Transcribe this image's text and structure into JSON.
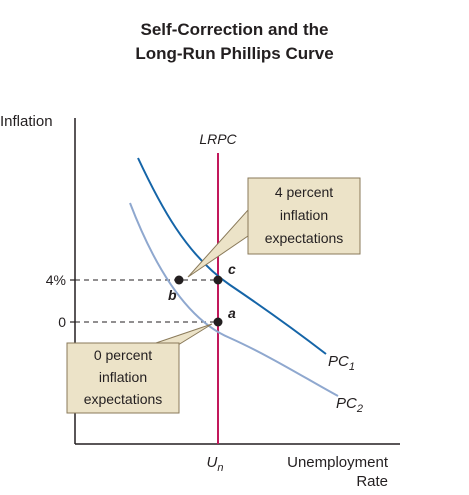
{
  "title_lines": [
    "Self-Correction and the",
    "Long-Run Phillips Curve"
  ],
  "chart_data": {
    "type": "line",
    "ylabel": "Inflation",
    "xlabel_lines": [
      "Unemployment",
      "Rate"
    ],
    "y_ticks": [
      {
        "label": "4%",
        "value": 4
      },
      {
        "label": "0",
        "value": 0
      }
    ],
    "x_ticks": [
      {
        "label": "U",
        "subscript": "n"
      }
    ],
    "vertical_line": {
      "label": "LRPC",
      "color": "#c2185b"
    },
    "series": [
      {
        "name": "PC",
        "subscript": "1",
        "color": "#1565a8"
      },
      {
        "name": "PC",
        "subscript": "2",
        "color": "#8fa8cf"
      }
    ],
    "points": [
      {
        "label": "a",
        "curve": "PC2",
        "inflation": 0
      },
      {
        "label": "b",
        "curve": "PC2",
        "inflation": 4
      },
      {
        "label": "c",
        "curve": "PC1",
        "inflation": 4
      }
    ],
    "annotations": [
      {
        "lines": [
          "4 percent",
          "inflation",
          "expectations"
        ]
      },
      {
        "lines": [
          "0 percent",
          "inflation",
          "expectations"
        ]
      }
    ],
    "box_fill": "#ece3c8",
    "box_stroke": "#8a7a5a"
  }
}
